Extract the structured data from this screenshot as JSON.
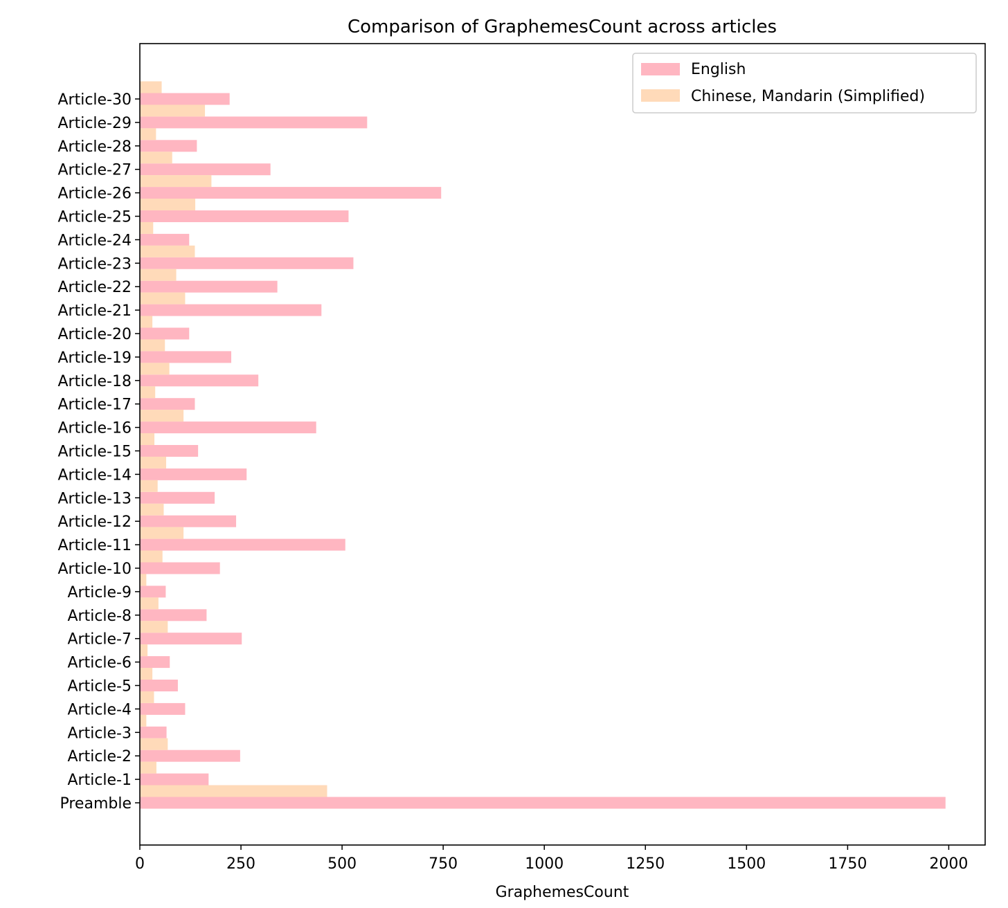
{
  "chart_data": {
    "type": "bar",
    "orientation": "horizontal",
    "title": "Comparison of GraphemesCount across articles",
    "xlabel": "GraphemesCount",
    "ylabel": "",
    "xlim": [
      0,
      2090
    ],
    "xticks": [
      0,
      250,
      500,
      750,
      1000,
      1250,
      1500,
      1750,
      2000
    ],
    "grid": false,
    "legend_position": "top-right",
    "categories": [
      "Preamble",
      "Article-1",
      "Article-2",
      "Article-3",
      "Article-4",
      "Article-5",
      "Article-6",
      "Article-7",
      "Article-8",
      "Article-9",
      "Article-10",
      "Article-11",
      "Article-12",
      "Article-13",
      "Article-14",
      "Article-15",
      "Article-16",
      "Article-17",
      "Article-18",
      "Article-19",
      "Article-20",
      "Article-21",
      "Article-22",
      "Article-23",
      "Article-24",
      "Article-25",
      "Article-26",
      "Article-27",
      "Article-28",
      "Article-29",
      "Article-30"
    ],
    "series": [
      {
        "name": "English",
        "color": "#ffb6c1",
        "values": [
          1992,
          170,
          248,
          66,
          112,
          94,
          74,
          252,
          165,
          64,
          198,
          508,
          238,
          185,
          264,
          144,
          436,
          136,
          293,
          226,
          122,
          449,
          340,
          528,
          122,
          516,
          745,
          323,
          141,
          562,
          222
        ]
      },
      {
        "name": "Chinese, Mandarin (Simplified)",
        "color": "#ffdab9",
        "values": [
          463,
          41,
          69,
          16,
          35,
          31,
          19,
          69,
          46,
          16,
          56,
          108,
          59,
          44,
          65,
          36,
          108,
          38,
          73,
          62,
          31,
          112,
          90,
          136,
          33,
          137,
          177,
          80,
          40,
          161,
          54
        ]
      }
    ]
  }
}
